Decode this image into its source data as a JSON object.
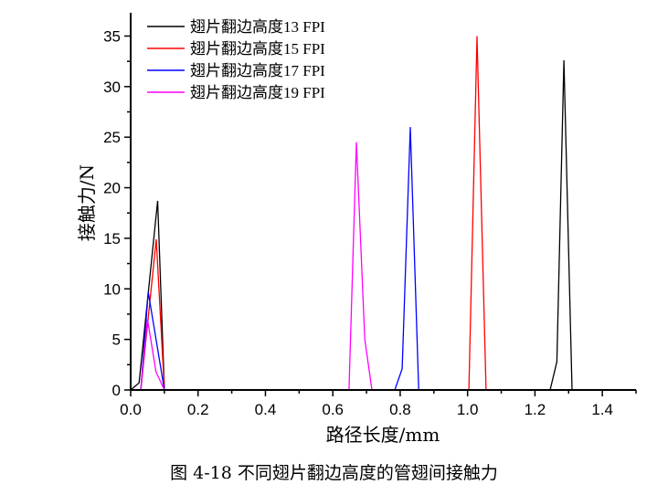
{
  "chart_data": {
    "type": "line",
    "title": "",
    "xlabel": "路径长度/mm",
    "ylabel": "接触力/N",
    "xlim": [
      0,
      1.5
    ],
    "ylim": [
      0,
      37.3
    ],
    "xticks": [
      0.0,
      0.2,
      0.4,
      0.6,
      0.8,
      1.0,
      1.2,
      1.4
    ],
    "xtick_labels": [
      "0.0",
      "0.2",
      "0.4",
      "0.6",
      "0.8",
      "1.0",
      "1.2",
      "1.4"
    ],
    "yticks": [
      0,
      5,
      10,
      15,
      20,
      25,
      30,
      35
    ],
    "ytick_labels": [
      "0",
      "5",
      "10",
      "15",
      "20",
      "25",
      "30",
      "35"
    ],
    "grid": false,
    "legend_position": "top-left",
    "series": [
      {
        "name": "翅片翻边高度13 FPI",
        "color": "#000000",
        "x": [
          0,
          0.025,
          0.08,
          0.1,
          1.245,
          1.265,
          1.286,
          1.31,
          1.5
        ],
        "y": [
          0,
          0.7,
          18.7,
          0,
          0,
          2.8,
          32.6,
          0,
          0
        ]
      },
      {
        "name": "翅片翻边高度15 FPI",
        "color": "#ff0000",
        "x": [
          0,
          0.03,
          0.076,
          0.1,
          1.004,
          1.028,
          1.055,
          1.5
        ],
        "y": [
          0,
          0,
          14.9,
          0,
          0,
          35.0,
          0,
          0
        ]
      },
      {
        "name": "翅片翻边高度17 FPI",
        "color": "#0000ff",
        "x": [
          0,
          0.03,
          0.052,
          0.1,
          0.784,
          0.806,
          0.83,
          0.855,
          1.5
        ],
        "y": [
          0,
          0,
          9.7,
          0,
          0,
          2.1,
          26.0,
          0,
          0
        ]
      },
      {
        "name": "翅片翻边高度19 FPI",
        "color": "#ff00ff",
        "x": [
          0,
          0.03,
          0.05,
          0.075,
          0.1,
          0.648,
          0.67,
          0.695,
          0.716,
          1.5
        ],
        "y": [
          0,
          0,
          7.0,
          1.8,
          0,
          0,
          24.5,
          5.0,
          0,
          0
        ]
      }
    ]
  },
  "caption": "图 4-18  不同翅片翻边高度的管翅间接触力"
}
